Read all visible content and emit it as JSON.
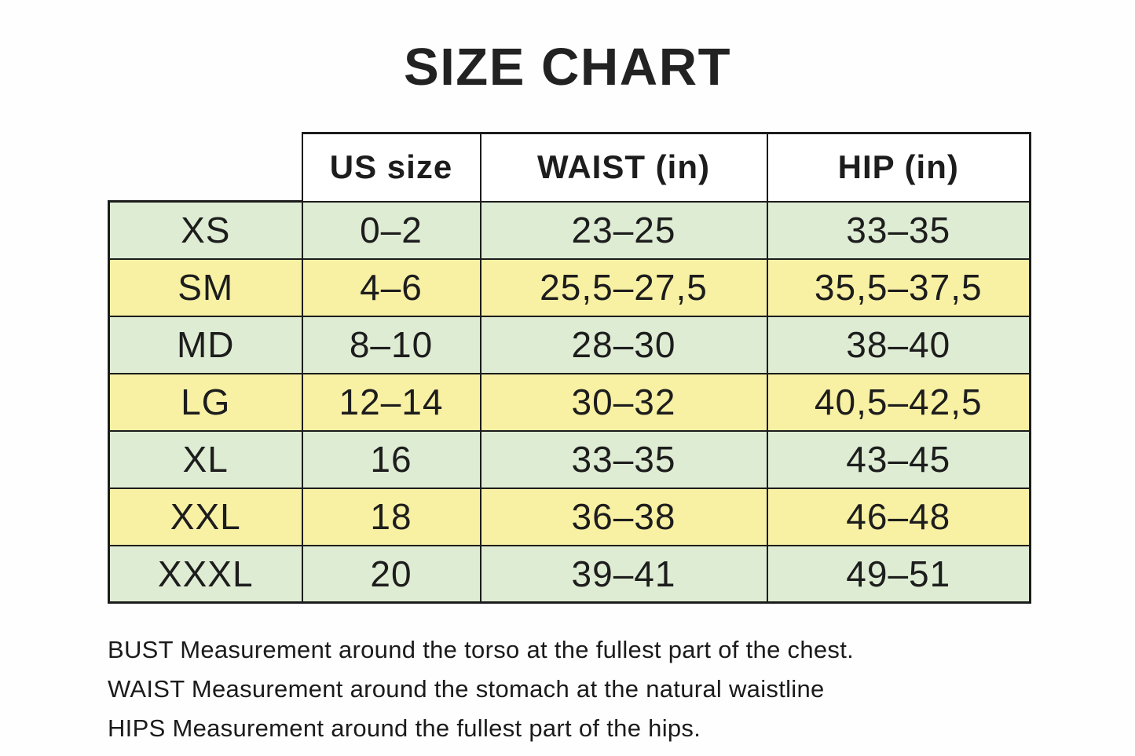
{
  "title": "SIZE CHART",
  "table": {
    "column_headers": [
      "US size",
      "WAIST (in)",
      "HIP (in)"
    ],
    "rows": [
      {
        "size": "XS",
        "us": "0–2",
        "waist": "23–25",
        "hip": "33–35"
      },
      {
        "size": "SM",
        "us": "4–6",
        "waist": "25,5–27,5",
        "hip": "35,5–37,5"
      },
      {
        "size": "MD",
        "us": "8–10",
        "waist": "28–30",
        "hip": "38–40"
      },
      {
        "size": "LG",
        "us": "12–14",
        "waist": "30–32",
        "hip": "40,5–42,5"
      },
      {
        "size": "XL",
        "us": "16",
        "waist": "33–35",
        "hip": "43–45"
      },
      {
        "size": "XXL",
        "us": "18",
        "waist": "36–38",
        "hip": "46–48"
      },
      {
        "size": "XXXL",
        "us": "20",
        "waist": "39–41",
        "hip": "49–51"
      }
    ],
    "row_colors": {
      "green": "#deecd3",
      "yellow": "#f8f1a4"
    },
    "border_color": "#1c1c1c"
  },
  "notes": [
    "BUST Measurement around the torso at the fullest part of the chest.",
    "WAIST Measurement around the stomach at the natural waistline",
    "HIPS Measurement around the fullest part of the hips."
  ]
}
